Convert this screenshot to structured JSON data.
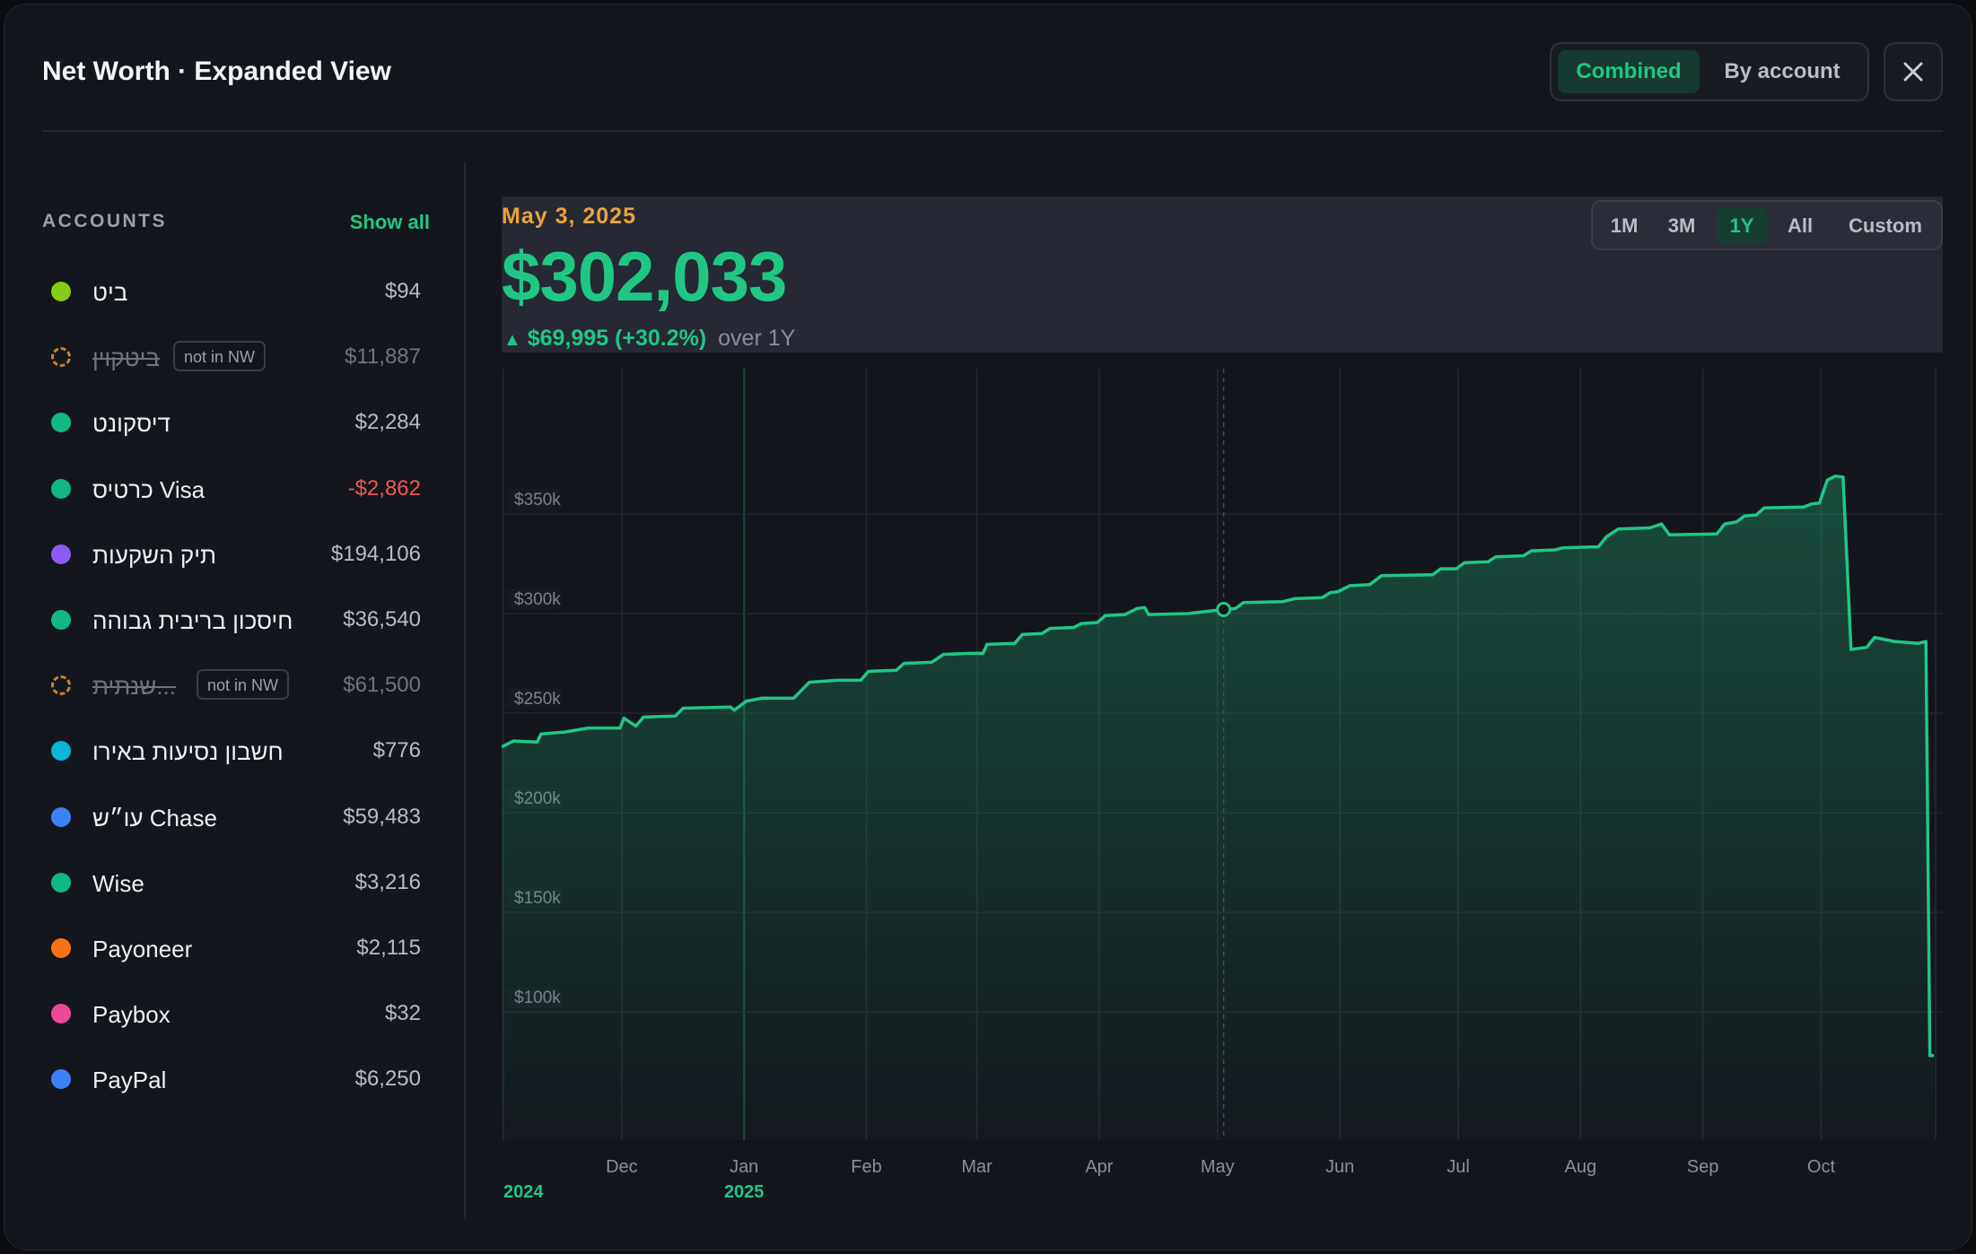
{
  "header": {
    "title": "Net Worth · Expanded View",
    "view_toggle": {
      "combined": "Combined",
      "by_account": "By account",
      "active": "Combined"
    },
    "close_icon": "close-icon"
  },
  "sidebar": {
    "heading": "ACCOUNTS",
    "show_all": "Show all",
    "accounts": [
      {
        "name": "ביט",
        "value": "$94",
        "color": "#84cc16",
        "style": "normal"
      },
      {
        "name": "ביטקוין",
        "value": "$11,887",
        "color": "#c0862c",
        "style": "excluded",
        "badge": "not in NW"
      },
      {
        "name": "דיסקונט",
        "value": "$2,284",
        "color": "#10b981",
        "style": "normal"
      },
      {
        "name": "כרטיס Visa",
        "value": "-$2,862",
        "color": "#10b981",
        "style": "negative"
      },
      {
        "name": "תיק השקעות",
        "value": "$194,106",
        "color": "#8b5cf6",
        "style": "normal"
      },
      {
        "name": "חיסכון בריבית גבוהה",
        "value": "$36,540",
        "color": "#10b981",
        "style": "normal"
      },
      {
        "name": "שנתית...",
        "value": "$61,500",
        "color": "#c0862c",
        "style": "excluded",
        "badge": "not in NW"
      },
      {
        "name": "חשבון נסיעות באירו",
        "value": "$776",
        "color": "#06b6d4",
        "style": "normal"
      },
      {
        "name": "עו״ש Chase",
        "value": "$59,483",
        "color": "#3b82f6",
        "style": "normal"
      },
      {
        "name": "Wise",
        "value": "$3,216",
        "color": "#10b981",
        "style": "normal"
      },
      {
        "name": "Payoneer",
        "value": "$2,115",
        "color": "#f97316",
        "style": "normal"
      },
      {
        "name": "Paybox",
        "value": "$32",
        "color": "#ec4899",
        "style": "normal"
      },
      {
        "name": "PayPal",
        "value": "$6,250",
        "color": "#3b82f6",
        "style": "normal"
      }
    ]
  },
  "stats": {
    "date": "May 3, 2025",
    "value": "$302,033",
    "change_arrow": "▲",
    "change": "$69,995 (+30.2%)",
    "period": "over 1Y"
  },
  "ranges": {
    "options": [
      "1M",
      "3M",
      "1Y",
      "All",
      "Custom"
    ],
    "active": "1Y"
  },
  "chart_data": {
    "type": "area",
    "x_ticks": [
      "Dec",
      "Jan",
      "Feb",
      "Mar",
      "Apr",
      "May",
      "Jun",
      "Jul",
      "Aug",
      "Sep",
      "Oct"
    ],
    "year_labels": [
      {
        "label": "2024",
        "at": "2024-11-01"
      },
      {
        "label": "2025",
        "at": "2025-01-01"
      }
    ],
    "y_ticks": [
      "$350k",
      "$300k",
      "$250k",
      "$200k",
      "$150k",
      "$100k"
    ],
    "y_tick_values": [
      350000,
      300000,
      250000,
      200000,
      150000,
      100000
    ],
    "ylim": [
      60000,
      385000
    ],
    "xlim": [
      "2024-11-01",
      "2025-10-30"
    ],
    "hover": {
      "date": "2025-05-03",
      "value": 302033
    },
    "color": "#20c784",
    "series": [
      {
        "points": [
          [
            "2024-11-01",
            233000
          ],
          [
            "2024-11-04",
            236000
          ],
          [
            "2024-11-10",
            235500
          ],
          [
            "2024-11-11",
            239500
          ],
          [
            "2024-11-17",
            240500
          ],
          [
            "2024-11-23",
            242500
          ],
          [
            "2024-12-01",
            242500
          ],
          [
            "2024-12-02",
            247500
          ],
          [
            "2024-12-05",
            243500
          ],
          [
            "2024-12-07",
            248000
          ],
          [
            "2024-12-15",
            248500
          ],
          [
            "2024-12-17",
            252500
          ],
          [
            "2024-12-29",
            253000
          ],
          [
            "2024-12-30",
            251500
          ],
          [
            "2025-01-02",
            256000
          ],
          [
            "2025-01-06",
            257500
          ],
          [
            "2025-01-14",
            257500
          ],
          [
            "2025-01-18",
            265500
          ],
          [
            "2025-01-25",
            266500
          ],
          [
            "2025-01-31",
            266500
          ],
          [
            "2025-02-02",
            271000
          ],
          [
            "2025-02-09",
            271500
          ],
          [
            "2025-02-11",
            275000
          ],
          [
            "2025-02-18",
            275500
          ],
          [
            "2025-02-21",
            279500
          ],
          [
            "2025-02-28",
            280000
          ],
          [
            "2025-03-03",
            280000
          ],
          [
            "2025-03-04",
            284500
          ],
          [
            "2025-03-11",
            285000
          ],
          [
            "2025-03-13",
            289500
          ],
          [
            "2025-03-18",
            290000
          ],
          [
            "2025-03-20",
            292500
          ],
          [
            "2025-03-26",
            293000
          ],
          [
            "2025-03-28",
            295000
          ],
          [
            "2025-04-01",
            295500
          ],
          [
            "2025-04-03",
            299000
          ],
          [
            "2025-04-08",
            299500
          ],
          [
            "2025-04-11",
            302500
          ],
          [
            "2025-04-13",
            303000
          ],
          [
            "2025-04-14",
            299500
          ],
          [
            "2025-04-24",
            300000
          ],
          [
            "2025-05-03",
            302033
          ],
          [
            "2025-05-06",
            302500
          ],
          [
            "2025-05-08",
            305500
          ],
          [
            "2025-05-18",
            306000
          ],
          [
            "2025-05-21",
            307500
          ],
          [
            "2025-05-28",
            308000
          ],
          [
            "2025-05-30",
            310500
          ],
          [
            "2025-06-01",
            311000
          ],
          [
            "2025-06-04",
            314000
          ],
          [
            "2025-06-09",
            314500
          ],
          [
            "2025-06-12",
            319000
          ],
          [
            "2025-06-25",
            319500
          ],
          [
            "2025-06-27",
            322500
          ],
          [
            "2025-07-01",
            322500
          ],
          [
            "2025-07-03",
            325500
          ],
          [
            "2025-07-09",
            326000
          ],
          [
            "2025-07-11",
            328500
          ],
          [
            "2025-07-18",
            329000
          ],
          [
            "2025-07-20",
            331500
          ],
          [
            "2025-07-26",
            332000
          ],
          [
            "2025-07-28",
            333000
          ],
          [
            "2025-08-06",
            333500
          ],
          [
            "2025-08-08",
            338500
          ],
          [
            "2025-08-11",
            342500
          ],
          [
            "2025-08-19",
            343000
          ],
          [
            "2025-08-22",
            345000
          ],
          [
            "2025-08-24",
            339500
          ],
          [
            "2025-09-05",
            340000
          ],
          [
            "2025-09-07",
            345000
          ],
          [
            "2025-09-10",
            346000
          ],
          [
            "2025-09-12",
            349000
          ],
          [
            "2025-09-15",
            349500
          ],
          [
            "2025-09-17",
            353000
          ],
          [
            "2025-09-27",
            353500
          ],
          [
            "2025-09-29",
            355000
          ],
          [
            "2025-10-01",
            355500
          ],
          [
            "2025-10-03",
            367000
          ],
          [
            "2025-10-05",
            369000
          ],
          [
            "2025-10-07",
            368500
          ],
          [
            "2025-10-09",
            282000
          ],
          [
            "2025-10-13",
            283000
          ],
          [
            "2025-10-15",
            288000
          ],
          [
            "2025-10-20",
            286000
          ],
          [
            "2025-10-26",
            285000
          ],
          [
            "2025-10-28",
            286000
          ],
          [
            "2025-10-29",
            78000
          ],
          [
            "2025-10-30",
            78000
          ]
        ]
      }
    ]
  }
}
